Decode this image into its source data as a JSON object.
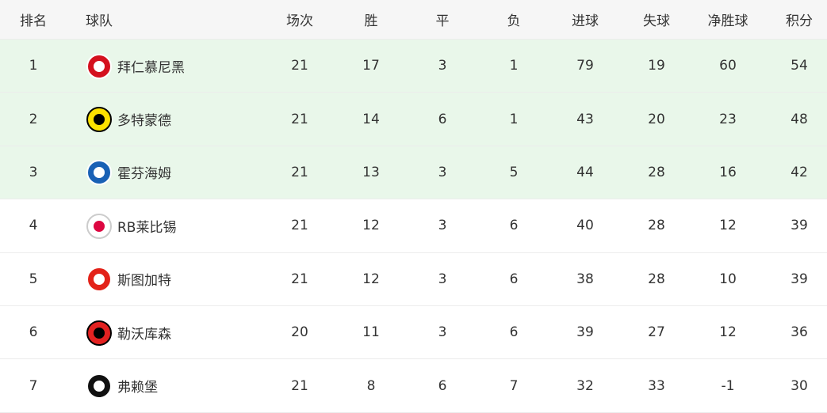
{
  "table": {
    "headers": [
      "排名",
      "球队",
      "场次",
      "胜",
      "平",
      "负",
      "进球",
      "失球",
      "净胜球",
      "积分"
    ],
    "rows": [
      [
        1,
        "拜仁慕尼黑",
        21,
        17,
        3,
        1,
        79,
        19,
        60,
        54
      ],
      [
        2,
        "多特蒙德",
        21,
        14,
        6,
        1,
        43,
        20,
        23,
        48
      ],
      [
        3,
        "霍芬海姆",
        21,
        13,
        3,
        5,
        44,
        28,
        16,
        42
      ],
      [
        4,
        "RB莱比锡",
        21,
        12,
        3,
        6,
        40,
        28,
        12,
        39
      ],
      [
        5,
        "斯图加特",
        21,
        12,
        3,
        6,
        38,
        28,
        10,
        39
      ],
      [
        6,
        "勒沃库森",
        20,
        11,
        3,
        6,
        39,
        27,
        12,
        36
      ],
      [
        7,
        "弗赖堡",
        21,
        8,
        6,
        7,
        32,
        33,
        -1,
        30
      ]
    ]
  }
}
